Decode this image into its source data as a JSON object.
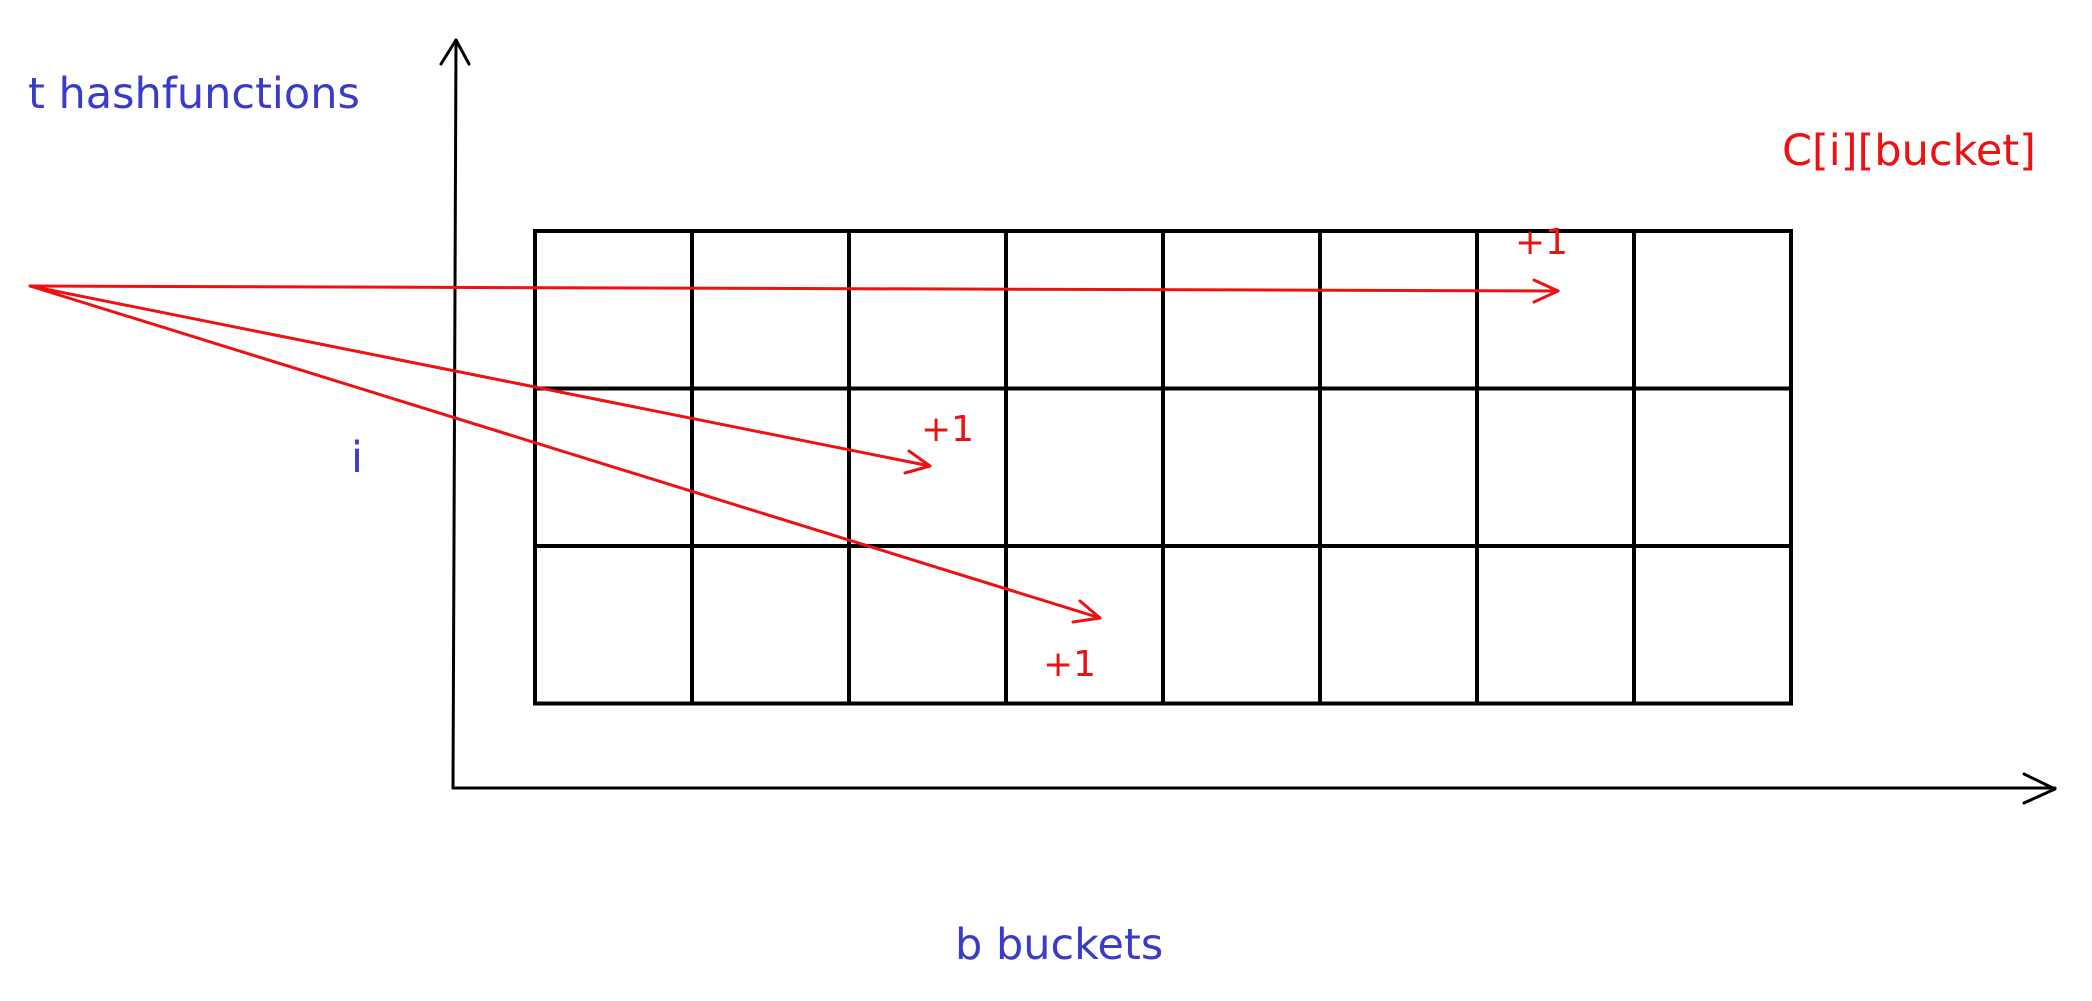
{
  "labels": {
    "y_axis": "t hashfunctions",
    "x_axis": "b buckets",
    "row_index": "i",
    "counter": "C[i][bucket]"
  },
  "grid": {
    "rows": 3,
    "cols": 8
  },
  "increments": [
    {
      "row": 0,
      "col": 6,
      "text": "+1"
    },
    {
      "row": 1,
      "col": 2,
      "text": "+1"
    },
    {
      "row": 2,
      "col": 3,
      "text": "+1"
    }
  ],
  "colors": {
    "grid": "#000000",
    "arrows": "#ee1111",
    "label_blue": "#3b3bc9",
    "label_red": "#ee1111"
  }
}
